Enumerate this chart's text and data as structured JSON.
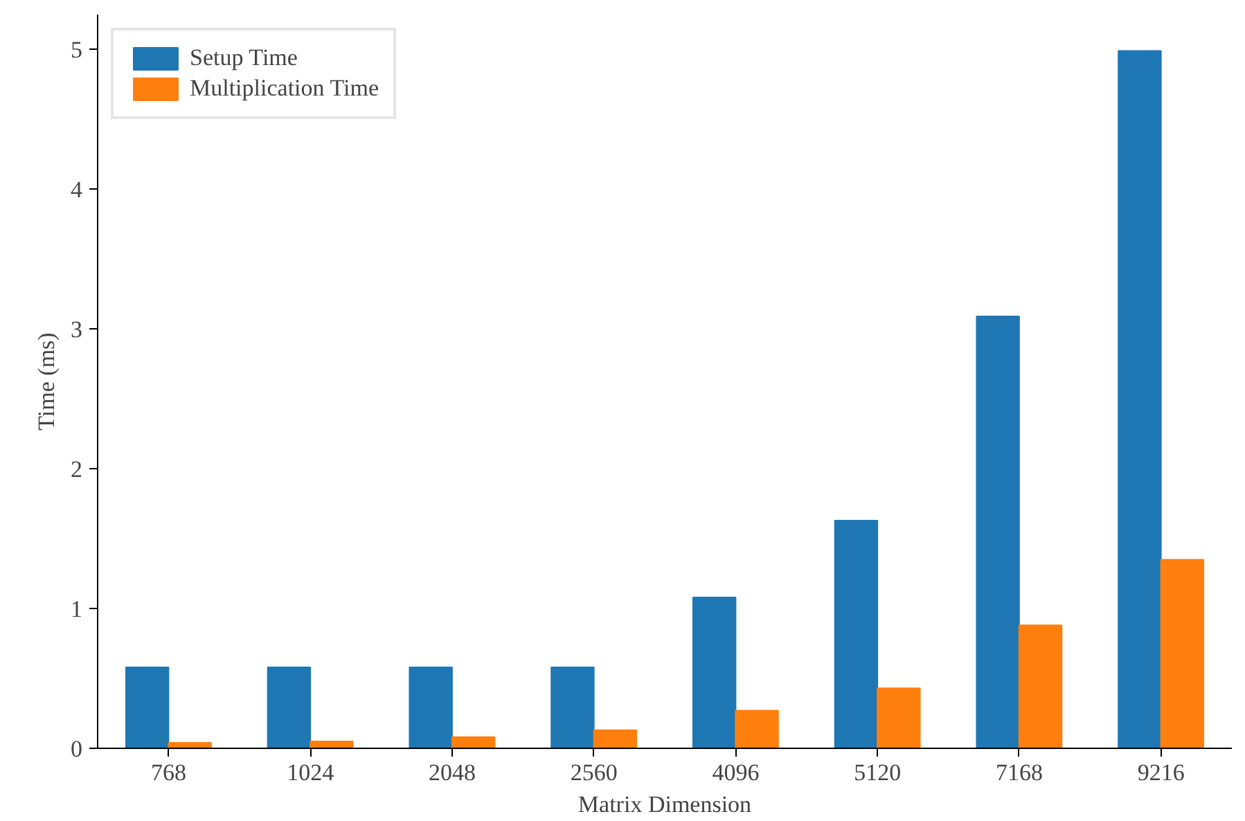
{
  "chart_data": {
    "type": "bar",
    "xlabel": "Matrix Dimension",
    "ylabel": "Time (ms)",
    "categories": [
      "768",
      "1024",
      "2048",
      "2560",
      "4096",
      "5120",
      "7168",
      "9216"
    ],
    "series": [
      {
        "name": "Setup Time",
        "color": "#1f77b4",
        "values": [
          0.58,
          0.58,
          0.58,
          0.58,
          1.08,
          1.63,
          3.09,
          4.99
        ]
      },
      {
        "name": "Multiplication Time",
        "color": "#ff7f0e",
        "values": [
          0.04,
          0.05,
          0.08,
          0.13,
          0.27,
          0.43,
          0.88,
          1.35
        ]
      }
    ],
    "ylim": [
      0,
      5.25
    ],
    "yticks": [
      0,
      1,
      2,
      3,
      4,
      5
    ],
    "grid": false,
    "legend": "top left"
  }
}
